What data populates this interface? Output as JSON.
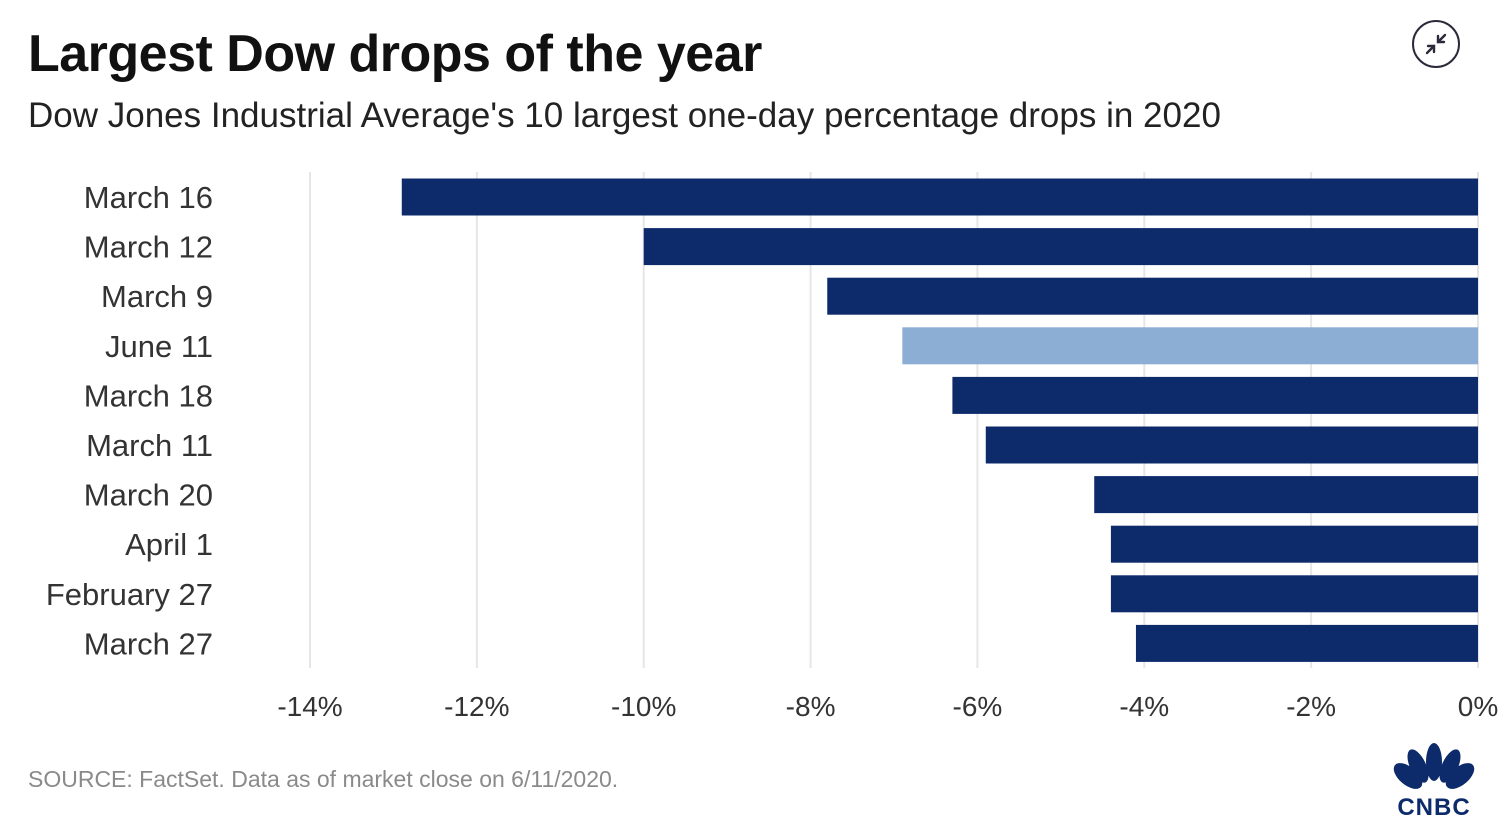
{
  "header": {
    "title": "Largest Dow drops of the year",
    "subtitle": "Dow Jones Industrial Average's 10 largest one-day percentage drops in 2020"
  },
  "controls": {
    "collapse_icon": "collapse-arrows-icon"
  },
  "footer": {
    "source": "SOURCE: FactSet. Data as of market close on 6/11/2020.",
    "logo_text": "CNBC"
  },
  "colors": {
    "bar": "#0d2b6b",
    "highlight_bar": "#8caed4",
    "grid": "#e6e6e6",
    "tick_label": "#333333"
  },
  "chart_data": {
    "type": "bar",
    "orientation": "horizontal",
    "categories": [
      "March 16",
      "March 12",
      "March 9",
      "June 11",
      "March 18",
      "March 11",
      "March 20",
      "April 1",
      "February 27",
      "March 27"
    ],
    "values": [
      -12.9,
      -10.0,
      -7.8,
      -6.9,
      -6.3,
      -5.9,
      -4.6,
      -4.4,
      -4.4,
      -4.1
    ],
    "highlight": [
      "June 11"
    ],
    "xlim": [
      -14,
      0
    ],
    "xticks": [
      -14,
      -12,
      -10,
      -8,
      -6,
      -4,
      -2,
      0
    ],
    "xtick_labels": [
      "-14%",
      "-12%",
      "-10%",
      "-8%",
      "-6%",
      "-4%",
      "-2%",
      "0%"
    ],
    "grid": true
  }
}
